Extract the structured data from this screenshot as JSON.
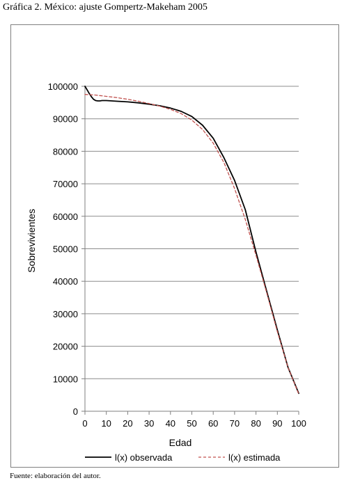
{
  "caption": "Gráfica 2. México: ajuste Gompertz-Makeham 2005",
  "source": "Fuente: elaboración del autor.",
  "chart_data": {
    "type": "line",
    "title": "",
    "xlabel": "Edad",
    "ylabel": "Sobrevivientes",
    "xlim": [
      0,
      100
    ],
    "ylim": [
      0,
      100000
    ],
    "xticks": [
      0,
      10,
      20,
      30,
      40,
      50,
      60,
      70,
      80,
      90,
      100
    ],
    "yticks": [
      0,
      10000,
      20000,
      30000,
      40000,
      50000,
      60000,
      70000,
      80000,
      90000,
      100000
    ],
    "xtick_labels": [
      "0",
      "10",
      "20",
      "30",
      "40",
      "50",
      "60",
      "70",
      "80",
      "90",
      "100"
    ],
    "ytick_labels": [
      "0",
      "10000",
      "20000",
      "30000",
      "40000",
      "50000",
      "60000",
      "70000",
      "80000",
      "90000",
      "100000"
    ],
    "grid": "horizontal",
    "legend_position": "bottom",
    "series": [
      {
        "name": "l(x) observada",
        "color": "#000000",
        "style": "solid",
        "x": [
          0,
          1,
          2,
          3,
          4,
          5,
          6,
          7,
          8,
          10,
          15,
          20,
          25,
          30,
          35,
          40,
          45,
          50,
          55,
          60,
          65,
          70,
          75,
          80,
          85,
          90,
          95,
          100
        ],
        "y": [
          100000,
          98900,
          97800,
          96800,
          96000,
          95600,
          95500,
          95500,
          95600,
          95600,
          95400,
          95200,
          94900,
          94500,
          94000,
          93300,
          92300,
          90700,
          88000,
          84000,
          78000,
          71000,
          62000,
          49000,
          37000,
          25000,
          13500,
          5500
        ]
      },
      {
        "name": "l(x) estimada",
        "color": "#c0504d",
        "style": "dashed",
        "x": [
          0,
          5,
          10,
          15,
          20,
          25,
          30,
          35,
          40,
          45,
          50,
          55,
          60,
          65,
          70,
          75,
          80,
          85,
          90,
          95,
          100
        ],
        "y": [
          97500,
          97300,
          96900,
          96500,
          96000,
          95400,
          94700,
          93900,
          92900,
          91600,
          89600,
          86700,
          82500,
          76500,
          68500,
          59000,
          48000,
          36500,
          24500,
          13500,
          5300
        ]
      }
    ]
  }
}
